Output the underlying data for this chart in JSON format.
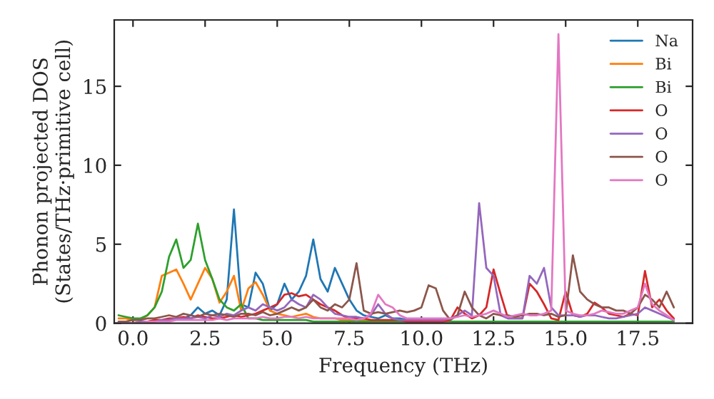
{
  "chart_data": {
    "type": "line",
    "xlabel": "Frequency (THz)",
    "ylabel": "Phonon projected DOS\n(States/THz·primitive cell)",
    "x": [
      -0.5,
      -0.25,
      0,
      0.25,
      0.5,
      0.75,
      1,
      1.25,
      1.5,
      1.75,
      2,
      2.25,
      2.5,
      2.75,
      3,
      3.25,
      3.5,
      3.75,
      4,
      4.25,
      4.5,
      4.75,
      5,
      5.25,
      5.5,
      5.75,
      6,
      6.25,
      6.5,
      6.75,
      7,
      7.25,
      7.5,
      7.75,
      8,
      8.25,
      8.5,
      8.75,
      9,
      9.25,
      9.5,
      9.75,
      10,
      10.25,
      10.5,
      10.75,
      11,
      11.25,
      11.5,
      11.75,
      12,
      12.25,
      12.5,
      12.75,
      13,
      13.25,
      13.5,
      13.75,
      14,
      14.25,
      14.5,
      14.75,
      15,
      15.25,
      15.5,
      15.75,
      16,
      16.25,
      16.5,
      16.75,
      17,
      17.25,
      17.5,
      17.75,
      18,
      18.25,
      18.5,
      18.75
    ],
    "series": [
      {
        "name": "Na",
        "color": "#1f77b4",
        "values": [
          null,
          null,
          null,
          null,
          null,
          null,
          null,
          null,
          null,
          0.3,
          0.5,
          1.0,
          0.6,
          0.8,
          0.5,
          1.5,
          7.2,
          1.2,
          1.0,
          3.2,
          2.5,
          0.8,
          1.2,
          2.5,
          1.5,
          2.0,
          3.0,
          5.3,
          2.8,
          2.0,
          3.5,
          2.5,
          1.5,
          0.8,
          0.5,
          0.4,
          0.3,
          0.5,
          0.3,
          0.3,
          0.2,
          null,
          null,
          null,
          null,
          null,
          null,
          null,
          null,
          null,
          null,
          null,
          null,
          null,
          null,
          null,
          null,
          null,
          null,
          null,
          null,
          null,
          null,
          null,
          null,
          null,
          null,
          null,
          null,
          null,
          null,
          null,
          null,
          null,
          null,
          null,
          null,
          null
        ]
      },
      {
        "name": "Bi",
        "color": "#ff7f0e",
        "values": [
          0.3,
          0.3,
          0.2,
          0.2,
          0.5,
          1.0,
          3.0,
          3.2,
          3.4,
          2.5,
          1.5,
          2.5,
          3.5,
          2.8,
          1.3,
          2.0,
          3.0,
          0.8,
          2.2,
          2.6,
          1.8,
          0.8,
          0.6,
          0.5,
          0.4,
          0.5,
          0.6,
          0.4,
          0.3,
          0.3,
          0.3,
          0.2,
          0.2,
          0.2,
          0.2,
          0.2,
          null,
          null,
          null,
          null,
          null,
          null,
          null,
          null,
          null,
          null,
          null,
          null,
          null,
          null,
          null,
          null,
          null,
          null,
          null,
          null,
          null,
          null,
          null,
          null,
          null,
          null,
          null,
          null,
          null,
          null,
          null,
          null,
          null,
          null,
          null,
          null,
          null,
          null,
          null,
          null,
          null,
          null
        ]
      },
      {
        "name": "Bi",
        "color": "#2ca02c",
        "values": [
          0.5,
          0.4,
          0.3,
          0.3,
          0.5,
          1.0,
          2.0,
          4.2,
          5.3,
          3.5,
          4.0,
          6.3,
          4.0,
          2.8,
          1.5,
          1.0,
          0.8,
          1.2,
          0.3,
          0.3,
          0.2,
          0.2,
          0.2,
          0.2,
          0.2,
          0.2,
          0.2,
          0.1,
          0.1,
          0.1,
          0.1,
          0.1,
          0.1,
          0.1,
          0.1,
          0.1,
          0.1,
          0.1,
          0.1,
          0.1,
          0.1,
          0.1,
          0.1,
          0.1,
          0.1,
          0.1,
          0.1,
          0.1,
          0.1,
          0.1,
          0.1,
          0.1,
          0.1,
          0.1,
          0.1,
          0.1,
          0.1,
          0.1,
          0.1,
          0.1,
          0.1,
          0.1,
          0.1,
          0.1,
          0.1,
          0.1,
          0.1,
          0.1,
          0.1,
          0.1,
          0.1,
          0.1,
          0.1,
          0.1,
          0.1,
          0.1,
          0.1,
          0.1
        ]
      },
      {
        "name": "O",
        "color": "#d62728",
        "values": [
          null,
          null,
          null,
          0.1,
          0.1,
          0.2,
          0.2,
          0.3,
          0.3,
          0.4,
          0.3,
          0.5,
          0.4,
          0.3,
          0.3,
          0.4,
          0.5,
          0.4,
          0.5,
          0.6,
          0.8,
          1.0,
          1.2,
          1.8,
          1.9,
          1.7,
          1.8,
          1.5,
          1.2,
          1.0,
          0.8,
          0.5,
          0.3,
          0.3,
          0.3,
          0.2,
          0.2,
          0.2,
          0.2,
          0.2,
          0.1,
          0.1,
          0.1,
          0.1,
          0.1,
          0.1,
          0.2,
          1.0,
          0.6,
          0.3,
          0.5,
          1.0,
          3.4,
          1.8,
          0.3,
          0.3,
          0.3,
          2.5,
          2.0,
          1.2,
          0.3,
          0.2,
          2.0,
          0.5,
          0.4,
          0.6,
          1.3,
          1.0,
          0.6,
          0.5,
          0.4,
          0.6,
          0.5,
          3.3,
          1.0,
          1.5,
          0.8,
          0.3
        ]
      },
      {
        "name": "O",
        "color": "#9467bd",
        "values": [
          0,
          0,
          0,
          0.1,
          0.1,
          0.1,
          0.2,
          0.2,
          0.3,
          0.3,
          0.3,
          0.4,
          0.3,
          0.5,
          0.4,
          0.6,
          0.5,
          0.8,
          1.0,
          0.8,
          1.2,
          1.0,
          0.8,
          1.0,
          1.5,
          1.2,
          1.0,
          1.8,
          1.5,
          1.0,
          0.6,
          0.5,
          0.4,
          0.4,
          0.3,
          0.5,
          1.2,
          0.6,
          0.3,
          0.2,
          0.2,
          0.2,
          0.2,
          0.2,
          0.2,
          0.2,
          0.3,
          0.5,
          0.8,
          0.5,
          7.6,
          3.5,
          3.0,
          0.5,
          0.3,
          0.3,
          0.3,
          3.0,
          2.5,
          3.5,
          1.0,
          0.5,
          0.5,
          0.5,
          0.4,
          0.5,
          0.5,
          0.4,
          0.3,
          0.3,
          0.4,
          0.5,
          0.6,
          1.0,
          0.8,
          0.6,
          0.4,
          0.2
        ]
      },
      {
        "name": "O",
        "color": "#8c564b",
        "values": [
          0.1,
          0.1,
          0.2,
          0.2,
          0.3,
          0.3,
          0.4,
          0.5,
          0.4,
          0.6,
          0.5,
          0.4,
          0.6,
          0.5,
          0.6,
          0.5,
          0.4,
          0.6,
          0.6,
          0.5,
          0.7,
          0.5,
          0.6,
          0.8,
          1.0,
          0.8,
          1.0,
          1.5,
          1.0,
          0.8,
          1.2,
          1.0,
          1.5,
          3.8,
          0.8,
          0.6,
          0.7,
          0.6,
          0.7,
          0.8,
          0.7,
          0.8,
          1.0,
          2.4,
          2.2,
          0.8,
          0.2,
          0.5,
          2.0,
          1.0,
          0.5,
          0.3,
          0.6,
          0.5,
          0.5,
          0.4,
          0.5,
          0.6,
          0.6,
          0.5,
          0.6,
          0.4,
          0.5,
          4.3,
          2.0,
          1.5,
          1.2,
          1.0,
          1.0,
          0.8,
          0.8,
          0.6,
          1.0,
          1.8,
          1.5,
          1.0,
          2.0,
          1.0
        ]
      },
      {
        "name": "O",
        "color": "#e377c2",
        "values": [
          0,
          0,
          0,
          0,
          0.1,
          0.1,
          0.1,
          0.1,
          0.2,
          0.2,
          0.2,
          0.2,
          0.2,
          0.2,
          0.3,
          0.2,
          0.3,
          0.3,
          0.3,
          0.3,
          0.4,
          0.3,
          0.3,
          0.4,
          0.4,
          0.3,
          0.4,
          0.3,
          0.3,
          0.3,
          0.3,
          0.3,
          0.3,
          0.2,
          0.3,
          0.6,
          1.8,
          1.2,
          1.0,
          0.5,
          0.3,
          0.3,
          0.3,
          0.3,
          0.3,
          0.3,
          0.3,
          0.4,
          0.5,
          0.4,
          0.5,
          0.6,
          0.8,
          0.6,
          0.4,
          0.5,
          0.6,
          0.5,
          0.5,
          0.6,
          0.8,
          18.3,
          0.8,
          0.6,
          0.5,
          0.5,
          0.6,
          0.8,
          0.7,
          0.6,
          0.6,
          0.8,
          1.0,
          2.5,
          1.2,
          0.8,
          0.5,
          0.2
        ]
      }
    ],
    "xlim": [
      -0.65,
      19.4
    ],
    "ylim": [
      0,
      19.2
    ],
    "xticks": [
      {
        "value": 0,
        "label": "0.0"
      },
      {
        "value": 2.5,
        "label": "2.5"
      },
      {
        "value": 5,
        "label": "5.0"
      },
      {
        "value": 7.5,
        "label": "7.5"
      },
      {
        "value": 10,
        "label": "10.0"
      },
      {
        "value": 12.5,
        "label": "12.5"
      },
      {
        "value": 15,
        "label": "15.0"
      },
      {
        "value": 17.5,
        "label": "17.5"
      }
    ],
    "yticks": [
      0,
      5,
      10,
      15
    ],
    "legend": "top right",
    "grid": false,
    "marker": "none",
    "line_style": "solid"
  }
}
